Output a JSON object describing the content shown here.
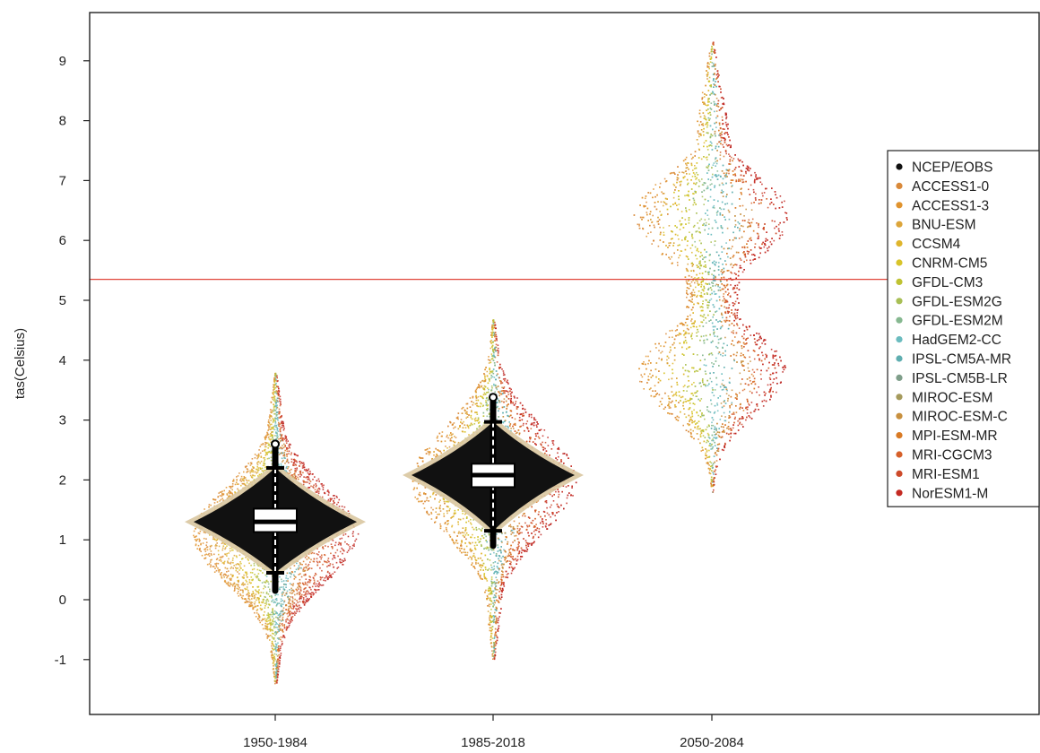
{
  "chart_data": {
    "type": "violin",
    "ylabel": "tas(Celsius)",
    "xlabel": "",
    "ylim": [
      -1.9,
      9.9
    ],
    "yticks": [
      -1,
      0,
      1,
      2,
      3,
      4,
      5,
      6,
      7,
      8,
      9
    ],
    "categories": [
      "1950-1984",
      "1985-2018",
      "2050-2084"
    ],
    "reference_line": {
      "value": 5.35,
      "color": "#e0453a"
    },
    "observed_boxplot": [
      {
        "category": "1950-1984",
        "min": 0.15,
        "whisker_low": 0.45,
        "q1": 1.13,
        "median": 1.3,
        "q3": 1.52,
        "whisker_high": 2.2,
        "max": 2.6
      },
      {
        "category": "1985-2018",
        "min": 0.9,
        "whisker_low": 1.15,
        "q1": 1.88,
        "median": 2.08,
        "q3": 2.27,
        "whisker_high": 2.97,
        "max": 3.38
      }
    ],
    "distributions": [
      {
        "category": "1950-1984",
        "min": -1.5,
        "max": 3.9,
        "center": 1.1
      },
      {
        "category": "1985-2018",
        "min": -1.1,
        "max": 4.8,
        "center": 2.0
      },
      {
        "category": "2050-2084",
        "min": 1.8,
        "max": 9.4,
        "center": 5.4
      }
    ],
    "legend": {
      "position": "right",
      "entries": [
        {
          "name": "NCEP/EOBS",
          "color": "#111111"
        },
        {
          "name": "ACCESS1-0",
          "color": "#d9893a"
        },
        {
          "name": "ACCESS1-3",
          "color": "#e0932e"
        },
        {
          "name": "BNU-ESM",
          "color": "#dca53a"
        },
        {
          "name": "CCSM4",
          "color": "#dfb52c"
        },
        {
          "name": "CNRM-CM5",
          "color": "#d8c42a"
        },
        {
          "name": "GFDL-CM3",
          "color": "#bfc232"
        },
        {
          "name": "GFDL-ESM2G",
          "color": "#a8bf55"
        },
        {
          "name": "GFDL-ESM2M",
          "color": "#86b890"
        },
        {
          "name": "HadGEM2-CC",
          "color": "#6bbcbf"
        },
        {
          "name": "IPSL-CM5A-MR",
          "color": "#5faeb0"
        },
        {
          "name": "IPSL-CM5B-LR",
          "color": "#7f9e8a"
        },
        {
          "name": "MIROC-ESM",
          "color": "#a59a5c"
        },
        {
          "name": "MIROC-ESM-C",
          "color": "#c8903f"
        },
        {
          "name": "MPI-ESM-MR",
          "color": "#d97a24"
        },
        {
          "name": "MRI-CGCM3",
          "color": "#d6602a"
        },
        {
          "name": "MRI-ESM1",
          "color": "#cd4a2a"
        },
        {
          "name": "NorESM1-M",
          "color": "#c42a22"
        }
      ]
    },
    "grid": false
  }
}
